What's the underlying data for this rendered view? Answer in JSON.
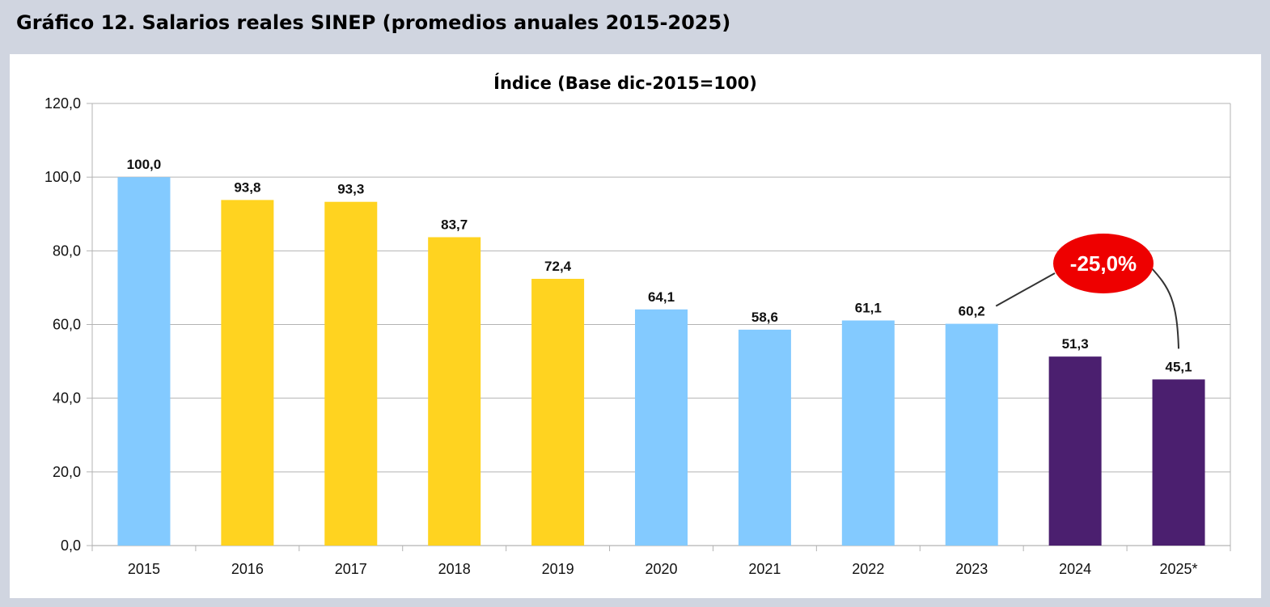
{
  "figure_title": "Gráfico 12.  Salarios reales SINEP (promedios anuales 2015-2025)",
  "colors": {
    "background": "#d0d5e0",
    "panel": "#ffffff",
    "light_blue": "#83caff",
    "yellow": "#ffd320",
    "purple": "#4b1f6f",
    "callout_red": "#ee0000",
    "grid": "#b3b3b3"
  },
  "callout": {
    "text": "-25,0%",
    "from_category": "2023",
    "to_category": "2025*"
  },
  "chart_data": {
    "type": "bar",
    "title": "Índice (Base dic-2015=100)",
    "xlabel": "",
    "ylabel": "",
    "ylim": [
      0,
      120
    ],
    "yticks": [
      0,
      20,
      40,
      60,
      80,
      100,
      120
    ],
    "ytick_labels": [
      "0,0",
      "20,0",
      "40,0",
      "60,0",
      "80,0",
      "100,0",
      "120,0"
    ],
    "grid": true,
    "legend": "none",
    "categories": [
      "2015",
      "2016",
      "2017",
      "2018",
      "2019",
      "2020",
      "2021",
      "2022",
      "2023",
      "2024",
      "2025*"
    ],
    "values": [
      100.0,
      93.8,
      93.3,
      83.7,
      72.4,
      64.1,
      58.6,
      61.1,
      60.2,
      51.3,
      45.1
    ],
    "value_labels": [
      "100,0",
      "93,8",
      "93,3",
      "83,7",
      "72,4",
      "64,1",
      "58,6",
      "61,1",
      "60,2",
      "51,3",
      "45,1"
    ],
    "bar_colors": [
      "#83caff",
      "#ffd320",
      "#ffd320",
      "#ffd320",
      "#ffd320",
      "#83caff",
      "#83caff",
      "#83caff",
      "#83caff",
      "#4b1f6f",
      "#4b1f6f"
    ]
  }
}
